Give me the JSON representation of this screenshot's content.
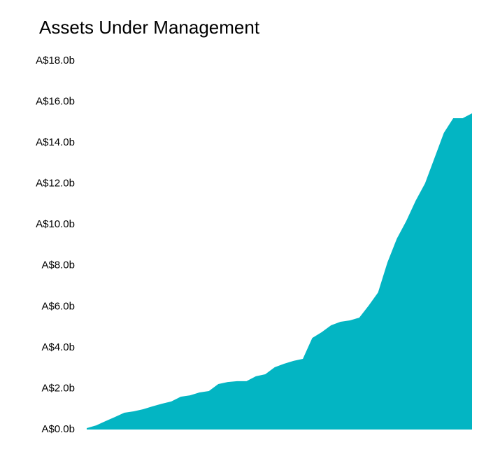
{
  "chart_data": {
    "type": "area",
    "title": "Assets Under Management",
    "color": "#03b5c3",
    "values": [
      0.07,
      0.2,
      0.41,
      0.61,
      0.82,
      0.89,
      0.99,
      1.13,
      1.26,
      1.37,
      1.6,
      1.67,
      1.81,
      1.88,
      2.22,
      2.32,
      2.36,
      2.36,
      2.6,
      2.7,
      3.04,
      3.21,
      3.35,
      3.45,
      4.47,
      4.75,
      5.09,
      5.26,
      5.33,
      5.46,
      6.05,
      6.69,
      8.16,
      9.32,
      10.18,
      11.17,
      12.02,
      13.25,
      14.48,
      15.2,
      15.2,
      15.44
    ],
    "ylim": [
      0,
      18
    ],
    "yticks": [
      {
        "value": 0,
        "label": "A$0.0b"
      },
      {
        "value": 2,
        "label": "A$2.0b"
      },
      {
        "value": 4,
        "label": "A$4.0b"
      },
      {
        "value": 6,
        "label": "A$6.0b"
      },
      {
        "value": 8,
        "label": "A$8.0b"
      },
      {
        "value": 10,
        "label": "A$10.0b"
      },
      {
        "value": 12,
        "label": "A$12.0b"
      },
      {
        "value": 14,
        "label": "A$14.0b"
      },
      {
        "value": 16,
        "label": "A$16.0b"
      },
      {
        "value": 18,
        "label": "A$18.0b"
      }
    ],
    "grid": false
  }
}
